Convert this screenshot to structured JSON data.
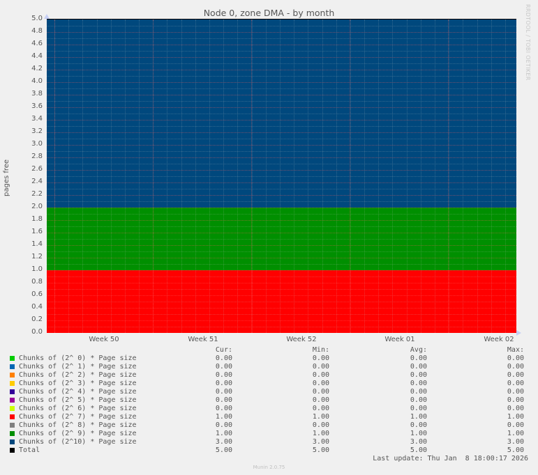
{
  "title": "Node 0, zone DMA - by month",
  "watermark": "RRDTOOL / TOBI OETIKER",
  "footer": "Munin 2.0.75",
  "last_update": "Last update: Thu Jan  8 18:00:17 2026",
  "legend_headers": {
    "cur": "Cur:",
    "min": "Min:",
    "avg": "Avg:",
    "max": "Max:"
  },
  "legend": [
    {
      "label": "Chunks of (2^ 0) * Page size",
      "color": "#00cc00",
      "cur": "0.00",
      "min": "0.00",
      "avg": "0.00",
      "max": "0.00"
    },
    {
      "label": "Chunks of (2^ 1) * Page size",
      "color": "#0066b3",
      "cur": "0.00",
      "min": "0.00",
      "avg": "0.00",
      "max": "0.00"
    },
    {
      "label": "Chunks of (2^ 2) * Page size",
      "color": "#ff8000",
      "cur": "0.00",
      "min": "0.00",
      "avg": "0.00",
      "max": "0.00"
    },
    {
      "label": "Chunks of (2^ 3) * Page size",
      "color": "#ffcc00",
      "cur": "0.00",
      "min": "0.00",
      "avg": "0.00",
      "max": "0.00"
    },
    {
      "label": "Chunks of (2^ 4) * Page size",
      "color": "#330099",
      "cur": "0.00",
      "min": "0.00",
      "avg": "0.00",
      "max": "0.00"
    },
    {
      "label": "Chunks of (2^ 5) * Page size",
      "color": "#990099",
      "cur": "0.00",
      "min": "0.00",
      "avg": "0.00",
      "max": "0.00"
    },
    {
      "label": "Chunks of (2^ 6) * Page size",
      "color": "#ccff00",
      "cur": "0.00",
      "min": "0.00",
      "avg": "0.00",
      "max": "0.00"
    },
    {
      "label": "Chunks of (2^ 7) * Page size",
      "color": "#ff0000",
      "cur": "1.00",
      "min": "1.00",
      "avg": "1.00",
      "max": "1.00"
    },
    {
      "label": "Chunks of (2^ 8) * Page size",
      "color": "#808080",
      "cur": "0.00",
      "min": "0.00",
      "avg": "0.00",
      "max": "0.00"
    },
    {
      "label": "Chunks of (2^ 9) * Page size",
      "color": "#008f00",
      "cur": "1.00",
      "min": "1.00",
      "avg": "1.00",
      "max": "1.00"
    },
    {
      "label": "Chunks of (2^10) * Page size",
      "color": "#00487d",
      "cur": "3.00",
      "min": "3.00",
      "avg": "3.00",
      "max": "3.00"
    },
    {
      "label": "Total",
      "color": "#000000",
      "cur": "5.00",
      "min": "5.00",
      "avg": "5.00",
      "max": "5.00"
    }
  ],
  "chart_data": {
    "type": "area",
    "stacked": true,
    "title": "Node 0, zone DMA - by month",
    "xlabel": "",
    "ylabel": "pages free",
    "ylim": [
      0,
      5.0
    ],
    "yticks": [
      "0.0",
      "0.2",
      "0.4",
      "0.6",
      "0.8",
      "1.0",
      "1.2",
      "1.4",
      "1.6",
      "1.8",
      "2.0",
      "2.2",
      "2.4",
      "2.6",
      "2.8",
      "3.0",
      "3.2",
      "3.4",
      "3.6",
      "3.8",
      "4.0",
      "4.2",
      "4.4",
      "4.6",
      "4.8",
      "5.0"
    ],
    "categories": [
      "Week 50",
      "Week 51",
      "Week 52",
      "Week 01",
      "Week 02"
    ],
    "grid": true,
    "legend_position": "bottom",
    "series": [
      {
        "name": "Chunks of (2^ 0) * Page size",
        "color": "#00cc00",
        "values": [
          0,
          0,
          0,
          0,
          0
        ]
      },
      {
        "name": "Chunks of (2^ 1) * Page size",
        "color": "#0066b3",
        "values": [
          0,
          0,
          0,
          0,
          0
        ]
      },
      {
        "name": "Chunks of (2^ 2) * Page size",
        "color": "#ff8000",
        "values": [
          0,
          0,
          0,
          0,
          0
        ]
      },
      {
        "name": "Chunks of (2^ 3) * Page size",
        "color": "#ffcc00",
        "values": [
          0,
          0,
          0,
          0,
          0
        ]
      },
      {
        "name": "Chunks of (2^ 4) * Page size",
        "color": "#330099",
        "values": [
          0,
          0,
          0,
          0,
          0
        ]
      },
      {
        "name": "Chunks of (2^ 5) * Page size",
        "color": "#990099",
        "values": [
          0,
          0,
          0,
          0,
          0
        ]
      },
      {
        "name": "Chunks of (2^ 6) * Page size",
        "color": "#ccff00",
        "values": [
          0,
          0,
          0,
          0,
          0
        ]
      },
      {
        "name": "Chunks of (2^ 7) * Page size",
        "color": "#ff0000",
        "values": [
          1,
          1,
          1,
          1,
          1
        ]
      },
      {
        "name": "Chunks of (2^ 8) * Page size",
        "color": "#808080",
        "values": [
          0,
          0,
          0,
          0,
          0
        ]
      },
      {
        "name": "Chunks of (2^ 9) * Page size",
        "color": "#008f00",
        "values": [
          1,
          1,
          1,
          1,
          1
        ]
      },
      {
        "name": "Chunks of (2^10) * Page size",
        "color": "#00487d",
        "values": [
          3,
          3,
          3,
          3,
          3
        ]
      },
      {
        "name": "Total",
        "color": "#000000",
        "values": [
          5,
          5,
          5,
          5,
          5
        ]
      }
    ]
  }
}
